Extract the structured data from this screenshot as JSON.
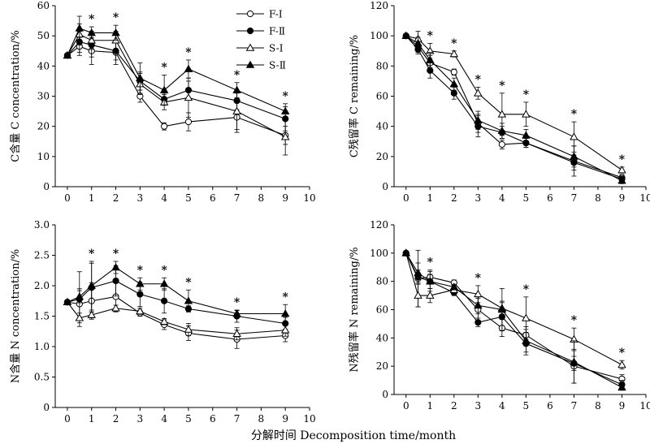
{
  "figure": {
    "xlabel": "分解时间 Decomposition time/month"
  },
  "chart_data": [
    {
      "type": "line",
      "ylabel": "C含量 C concentration/%",
      "xlim": [
        -0.5,
        10
      ],
      "ylim": [
        0,
        60
      ],
      "xticks": [
        0,
        1,
        2,
        3,
        4,
        5,
        6,
        7,
        8,
        9,
        10
      ],
      "yticks": [
        0,
        10,
        20,
        30,
        40,
        50,
        60
      ],
      "legend": "top-right",
      "x": [
        0,
        0.5,
        1,
        2,
        3,
        4,
        5,
        7,
        9
      ],
      "series": [
        {
          "name": "F-Ⅰ",
          "marker": "open-circle",
          "values": [
            43.5,
            46.5,
            45,
            44.5,
            30,
            20,
            21.5,
            23,
            17
          ],
          "err": [
            0,
            3,
            4.5,
            4,
            2,
            1.2,
            3,
            5,
            3
          ]
        },
        {
          "name": "F-Ⅱ",
          "marker": "filled-circle",
          "values": [
            43.5,
            48,
            47,
            45,
            35,
            29,
            32,
            28.5,
            22.5
          ],
          "err": [
            0,
            3.5,
            4,
            3,
            3,
            2,
            3,
            3,
            4
          ]
        },
        {
          "name": "S-Ⅰ",
          "marker": "open-triangle",
          "values": [
            43.5,
            50.5,
            48.5,
            48.5,
            34,
            28,
            29.5,
            25,
            16.5
          ],
          "err": [
            0,
            3.5,
            3,
            3,
            3.5,
            2.5,
            6.5,
            6,
            6
          ]
        },
        {
          "name": "S-Ⅱ",
          "marker": "filled-triangle",
          "values": [
            43.5,
            52.5,
            51,
            51,
            36,
            32,
            39,
            32,
            25
          ],
          "err": [
            0,
            4,
            2,
            2.5,
            5,
            5,
            3,
            2.5,
            2.5
          ]
        }
      ],
      "star_x": [
        1,
        2,
        4,
        5,
        7,
        9
      ],
      "star_label": "*"
    },
    {
      "type": "line",
      "ylabel": "C残留率 C remaining/%",
      "xlim": [
        -0.5,
        10
      ],
      "ylim": [
        0,
        120
      ],
      "xticks": [
        0,
        1,
        2,
        3,
        4,
        5,
        6,
        7,
        8,
        9,
        10
      ],
      "yticks": [
        0,
        20,
        40,
        60,
        80,
        100,
        120
      ],
      "x": [
        0,
        0.5,
        1,
        2,
        3,
        4,
        5,
        7,
        9
      ],
      "series": [
        {
          "name": "F-Ⅰ",
          "marker": "open-circle",
          "values": [
            100,
            93,
            82,
            76,
            42,
            28,
            29,
            17,
            6
          ],
          "err": [
            0,
            4,
            5,
            2,
            6,
            3,
            3,
            10,
            2
          ]
        },
        {
          "name": "F-Ⅱ",
          "marker": "filled-circle",
          "values": [
            100,
            91,
            77,
            62,
            40,
            36,
            29,
            16,
            5
          ],
          "err": [
            0,
            3,
            5,
            4,
            7,
            4,
            3,
            5,
            2
          ]
        },
        {
          "name": "S-Ⅰ",
          "marker": "open-triangle",
          "values": [
            100,
            98,
            90,
            88,
            62,
            48,
            48,
            33,
            11
          ],
          "err": [
            0,
            5,
            5,
            2,
            4,
            14,
            8,
            10,
            2
          ]
        },
        {
          "name": "S-Ⅱ",
          "marker": "filled-triangle",
          "values": [
            100,
            95,
            84,
            68,
            44,
            37,
            34,
            20,
            4
          ],
          "err": [
            0,
            4,
            5,
            4,
            6,
            5,
            4,
            7,
            2
          ]
        }
      ],
      "star_x": [
        1,
        2,
        3,
        4,
        5,
        7,
        9
      ],
      "star_label": "*"
    },
    {
      "type": "line",
      "ylabel": "N含量 N concentration/%",
      "xlim": [
        -0.5,
        10
      ],
      "ylim": [
        0,
        3.0
      ],
      "xticks": [
        0,
        1,
        2,
        3,
        4,
        5,
        6,
        7,
        8,
        9,
        10
      ],
      "yticks": [
        "0",
        "0.5",
        "1.0",
        "1.5",
        "2.0",
        "2.5",
        "3.0"
      ],
      "x": [
        0,
        0.5,
        1,
        2,
        3,
        4,
        5,
        7,
        9
      ],
      "series": [
        {
          "name": "F-Ⅰ",
          "marker": "open-circle",
          "values": [
            1.73,
            1.7,
            1.75,
            1.82,
            1.55,
            1.36,
            1.22,
            1.12,
            1.18
          ],
          "err": [
            0,
            0.25,
            0.3,
            0.25,
            0.05,
            0.08,
            0.12,
            0.15,
            0.1
          ]
        },
        {
          "name": "F-Ⅱ",
          "marker": "filled-circle",
          "values": [
            1.73,
            1.78,
            1.97,
            2.08,
            1.86,
            1.75,
            1.62,
            1.5,
            1.38
          ],
          "err": [
            0,
            0.45,
            0.4,
            0.25,
            0.2,
            0.2,
            0.05,
            0.1,
            0.1
          ]
        },
        {
          "name": "S-Ⅰ",
          "marker": "open-triangle",
          "values": [
            1.73,
            1.47,
            1.52,
            1.63,
            1.58,
            1.41,
            1.28,
            1.21,
            1.27
          ],
          "err": [
            0,
            0.08,
            0.05,
            0.05,
            0.05,
            0.05,
            0.1,
            0.1,
            0.1
          ]
        },
        {
          "name": "S-Ⅱ",
          "marker": "filled-triangle",
          "values": [
            1.73,
            1.82,
            2.0,
            2.3,
            2.03,
            2.03,
            1.75,
            1.54,
            1.54
          ],
          "err": [
            0,
            0.1,
            0.4,
            0.1,
            0.1,
            0.1,
            0.18,
            0.05,
            0.15
          ]
        }
      ],
      "star_x": [
        1,
        2,
        3,
        4,
        5,
        7,
        9
      ],
      "star_label": "*"
    },
    {
      "type": "line",
      "ylabel": "N残留率 N remaining/%",
      "xlim": [
        -0.5,
        10
      ],
      "ylim": [
        0,
        120
      ],
      "xticks": [
        0,
        1,
        2,
        3,
        4,
        5,
        6,
        7,
        8,
        9,
        10
      ],
      "yticks": [
        0,
        20,
        40,
        60,
        80,
        100,
        120
      ],
      "x": [
        0,
        0.5,
        1,
        2,
        3,
        4,
        5,
        7,
        9
      ],
      "series": [
        {
          "name": "F-Ⅰ",
          "marker": "open-circle",
          "values": [
            100,
            82,
            83,
            79,
            60,
            47,
            42,
            20,
            11
          ],
          "err": [
            0,
            20,
            5,
            2,
            8,
            6,
            6,
            12,
            3
          ]
        },
        {
          "name": "F-Ⅱ",
          "marker": "filled-circle",
          "values": [
            100,
            83,
            80,
            72,
            51,
            55,
            36,
            22,
            7
          ],
          "err": [
            0,
            5,
            5,
            2,
            3,
            10,
            8,
            5,
            3
          ]
        },
        {
          "name": "S-Ⅰ",
          "marker": "open-triangle",
          "values": [
            100,
            70,
            70,
            74,
            71,
            61,
            54,
            39,
            21
          ],
          "err": [
            0,
            8,
            5,
            3,
            6,
            5,
            15,
            8,
            3
          ]
        },
        {
          "name": "S-Ⅱ",
          "marker": "filled-triangle",
          "values": [
            100,
            86,
            80,
            76,
            63,
            60,
            38,
            23,
            5
          ],
          "err": [
            0,
            7,
            7,
            2,
            6,
            15,
            8,
            15,
            2
          ]
        }
      ],
      "star_x": [
        1,
        3,
        5,
        7,
        9
      ],
      "star_label": "*"
    }
  ]
}
